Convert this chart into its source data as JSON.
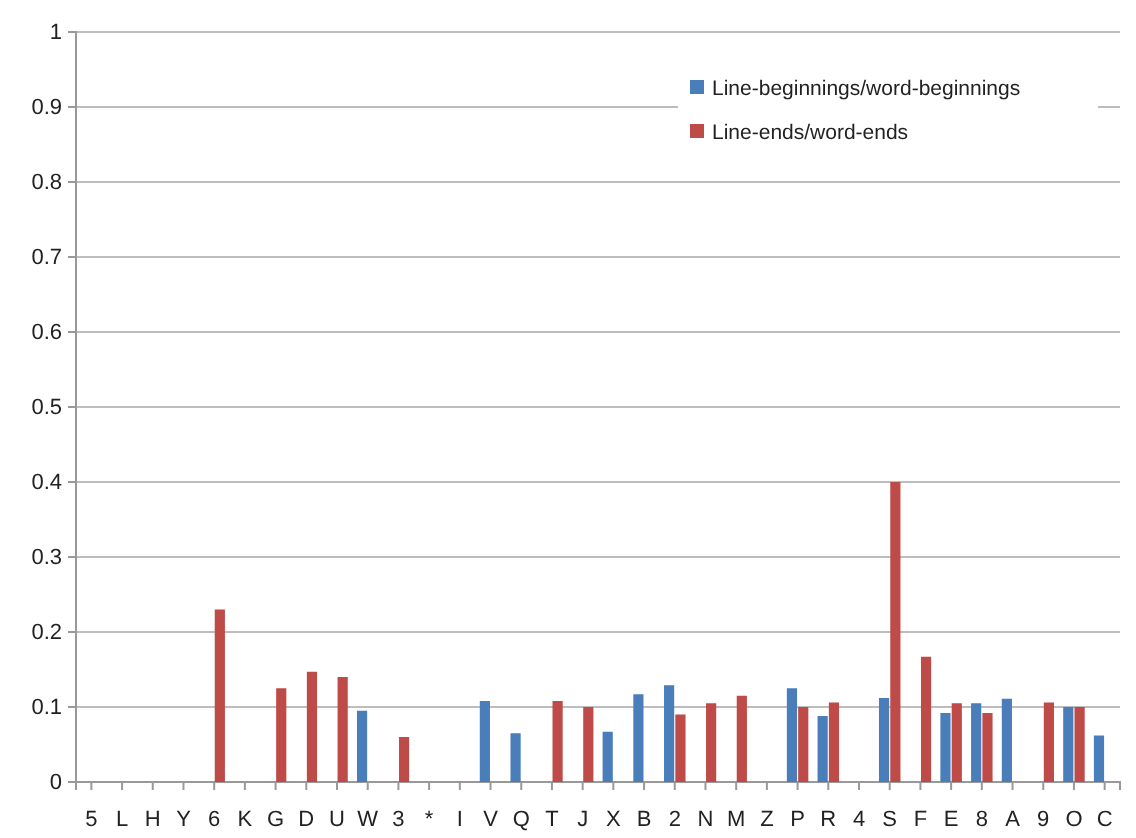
{
  "chart_data": {
    "type": "bar",
    "categories": [
      "5",
      "L",
      "H",
      "Y",
      "6",
      "K",
      "G",
      "D",
      "U",
      "W",
      "3",
      "*",
      "I",
      "V",
      "Q",
      "T",
      "J",
      "X",
      "B",
      "2",
      "N",
      "M",
      "Z",
      "P",
      "R",
      "4",
      "S",
      "F",
      "E",
      "8",
      "A",
      "9",
      "O",
      "C"
    ],
    "series": [
      {
        "name": "Line-beginnings/word-beginnings",
        "color": "#4a7ebb",
        "values": [
          null,
          null,
          null,
          null,
          null,
          null,
          null,
          null,
          null,
          0.095,
          null,
          null,
          null,
          0.108,
          0.065,
          null,
          null,
          0.067,
          0.117,
          0.129,
          null,
          null,
          null,
          0.125,
          0.088,
          null,
          0.112,
          null,
          0.092,
          0.105,
          0.111,
          null,
          0.1,
          0.062
        ]
      },
      {
        "name": "Line-ends/word-ends",
        "color": "#be4b48",
        "values": [
          null,
          null,
          null,
          null,
          0.23,
          null,
          0.125,
          0.147,
          0.14,
          null,
          0.06,
          null,
          null,
          null,
          null,
          0.108,
          0.1,
          null,
          null,
          0.09,
          0.105,
          0.115,
          null,
          0.1,
          0.106,
          null,
          0.4,
          0.167,
          0.105,
          0.092,
          null,
          0.106,
          0.1,
          null
        ]
      }
    ],
    "ylim": [
      0,
      1
    ],
    "yticks": [
      0,
      0.1,
      0.2,
      0.3,
      0.4,
      0.5,
      0.6,
      0.7,
      0.8,
      0.9,
      1
    ],
    "grid": "y",
    "legend": "top right"
  }
}
